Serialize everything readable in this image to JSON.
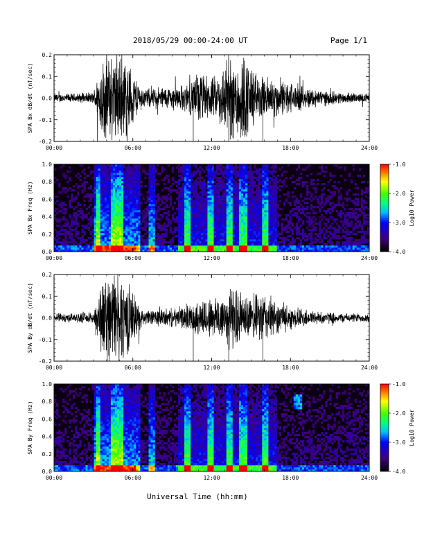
{
  "header": {
    "title": "2018/05/29  00:00-24:00 UT",
    "page": "Page 1/1"
  },
  "footer": {
    "xlabel": "Universal Time (hh:mm)"
  },
  "colors": {
    "waveform": "#000000",
    "spectrogram_background": "#0a0010"
  },
  "chart_data": [
    {
      "type": "line",
      "ylabel": "SPA Bx dB/dt (nT/sec)",
      "xlim": [
        0,
        24
      ],
      "ylim": [
        -0.2,
        0.2
      ],
      "x_ticks": [
        "00:00",
        "06:00",
        "12:00",
        "18:00",
        "24:00"
      ],
      "y_ticks": [
        "-0.2",
        "-0.1",
        "0.0",
        "0.1",
        "0.2"
      ],
      "envelope": {
        "hours": [
          0,
          1,
          2,
          3,
          3.3,
          3.6,
          4,
          4.5,
          5,
          5.5,
          6,
          6.5,
          7,
          8,
          9,
          10,
          10.5,
          11,
          11.5,
          12,
          12.5,
          13,
          13.5,
          14,
          14.5,
          15,
          15.5,
          16,
          16.5,
          17,
          18,
          19,
          20,
          21,
          22,
          23,
          24
        ],
        "amplitude": [
          0.02,
          0.02,
          0.02,
          0.025,
          0.1,
          0.16,
          0.2,
          0.2,
          0.2,
          0.18,
          0.12,
          0.06,
          0.04,
          0.05,
          0.05,
          0.06,
          0.08,
          0.12,
          0.1,
          0.09,
          0.1,
          0.16,
          0.18,
          0.2,
          0.2,
          0.15,
          0.1,
          0.09,
          0.1,
          0.08,
          0.07,
          0.05,
          0.04,
          0.03,
          0.025,
          0.02,
          0.02
        ]
      }
    },
    {
      "type": "heatmap",
      "ylabel": "SPA Bx Freq (Hz)",
      "xlim": [
        0,
        24
      ],
      "ylim": [
        0,
        1.0
      ],
      "x_ticks": [
        "00:00",
        "06:00",
        "12:00",
        "18:00",
        "24:00"
      ],
      "y_ticks": [
        "0.0",
        "0.2",
        "0.4",
        "0.6",
        "0.8",
        "1.0"
      ],
      "colorbar": {
        "label": "Log10 Power",
        "range": [
          -4.0,
          -1.0
        ],
        "ticks": [
          "-1.0",
          "-2.0",
          "-3.0",
          "-4.0"
        ]
      },
      "bursts": [
        3.3,
        4.6,
        5.1,
        7.5,
        10.2,
        11.9,
        13.3,
        14.4,
        16.1
      ],
      "highfreq_patch": null
    },
    {
      "type": "line",
      "ylabel": "SPA By dB/dt (nT/sec)",
      "xlim": [
        0,
        24
      ],
      "ylim": [
        -0.2,
        0.2
      ],
      "x_ticks": [
        "00:00",
        "06:00",
        "12:00",
        "18:00",
        "24:00"
      ],
      "y_ticks": [
        "-0.2",
        "-0.1",
        "0.0",
        "0.1",
        "0.2"
      ],
      "envelope": {
        "hours": [
          0,
          1,
          2,
          3,
          3.3,
          3.6,
          4,
          4.5,
          5,
          5.5,
          6,
          6.5,
          7,
          8,
          9,
          10,
          10.5,
          11,
          11.5,
          12,
          12.5,
          13,
          13.5,
          14,
          14.5,
          15,
          15.5,
          16,
          16.5,
          17,
          18,
          19,
          20,
          21,
          22,
          23,
          24
        ],
        "amplitude": [
          0.02,
          0.02,
          0.02,
          0.025,
          0.12,
          0.16,
          0.2,
          0.2,
          0.2,
          0.17,
          0.12,
          0.05,
          0.03,
          0.04,
          0.04,
          0.05,
          0.06,
          0.08,
          0.09,
          0.09,
          0.1,
          0.12,
          0.14,
          0.12,
          0.1,
          0.09,
          0.1,
          0.12,
          0.09,
          0.07,
          0.05,
          0.04,
          0.03,
          0.025,
          0.02,
          0.02,
          0.02
        ]
      }
    },
    {
      "type": "heatmap",
      "ylabel": "SPA By Freq (Hz)",
      "xlim": [
        0,
        24
      ],
      "ylim": [
        0,
        1.0
      ],
      "x_ticks": [
        "00:00",
        "06:00",
        "12:00",
        "18:00",
        "24:00"
      ],
      "y_ticks": [
        "0.0",
        "0.2",
        "0.4",
        "0.6",
        "0.8",
        "1.0"
      ],
      "colorbar": {
        "label": "Log10 Power",
        "range": [
          -4.0,
          -1.0
        ],
        "ticks": [
          "-1.0",
          "-2.0",
          "-3.0",
          "-4.0"
        ]
      },
      "bursts": [
        3.3,
        4.6,
        5.1,
        7.5,
        10.2,
        11.9,
        13.3,
        14.4,
        16.1
      ],
      "highfreq_patch": {
        "hour": 18.6,
        "freq": 0.8
      }
    }
  ]
}
